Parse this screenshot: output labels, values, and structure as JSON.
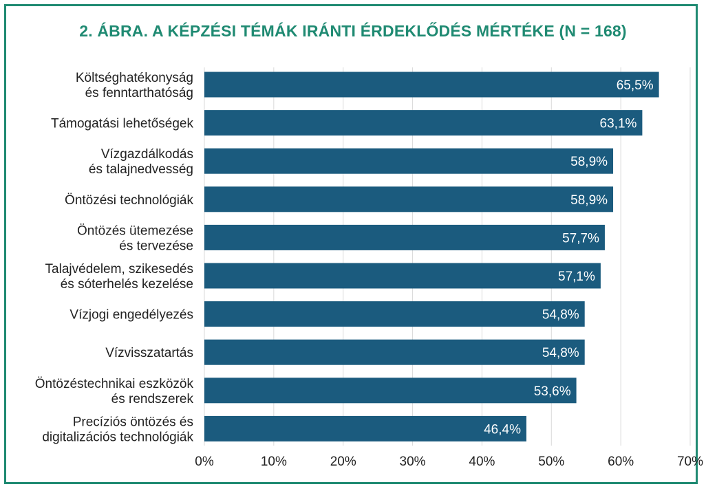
{
  "title": "2. ÁBRA. A KÉPZÉSI TÉMÁK IRÁNTI ÉRDEKLŐDÉS MÉRTÉKE (N = 168)",
  "colors": {
    "frame": "#1f8a72",
    "title": "#1f8a72",
    "bar": "#1b5b7e",
    "bar_label": "#ffffff",
    "text": "#222222",
    "grid": "#d9d9d9"
  },
  "chart_data": {
    "type": "bar",
    "orientation": "horizontal",
    "categories": [
      [
        "Költséghatékonyság",
        "és fenntarthatóság"
      ],
      [
        "Támogatási lehetőségek"
      ],
      [
        "Vízgazdálkodás",
        "és talajnedvesség"
      ],
      [
        "Öntözési technológiák"
      ],
      [
        "Öntözés ütemezése",
        "és tervezése"
      ],
      [
        "Talajvédelem, szikesedés",
        "és sóterhelés kezelése"
      ],
      [
        "Vízjogi engedélyezés"
      ],
      [
        "Vízvisszatartás"
      ],
      [
        "Öntözéstechnikai eszközök",
        "és rendszerek"
      ],
      [
        "Precíziós öntözés és",
        "digitalizációs technológiák"
      ]
    ],
    "values": [
      65.5,
      63.1,
      58.9,
      58.9,
      57.7,
      57.1,
      54.8,
      54.8,
      53.6,
      46.4
    ],
    "value_labels": [
      "65,5%",
      "63,1%",
      "58,9%",
      "58,9%",
      "57,7%",
      "57,1%",
      "54,8%",
      "54,8%",
      "53,6%",
      "46,4%"
    ],
    "xlim": [
      0,
      70
    ],
    "xticks": [
      0,
      10,
      20,
      30,
      40,
      50,
      60,
      70
    ],
    "xtick_labels": [
      "0%",
      "10%",
      "20%",
      "30%",
      "40%",
      "50%",
      "60%",
      "70%"
    ],
    "grid": true
  }
}
